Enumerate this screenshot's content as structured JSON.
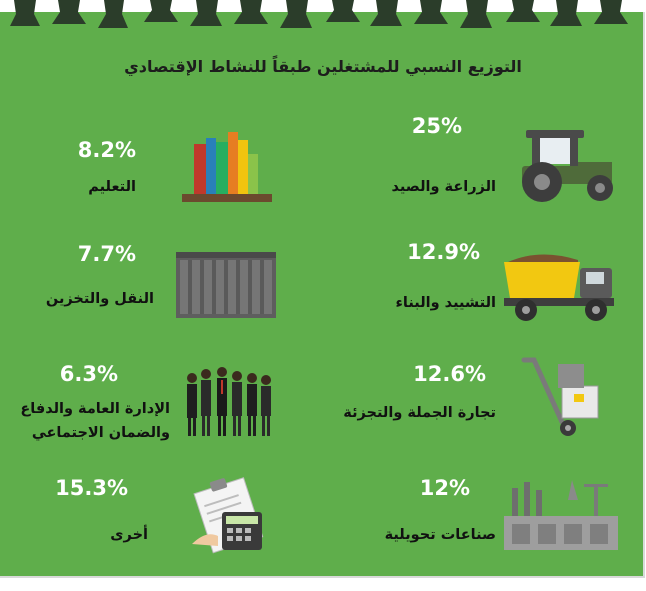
{
  "chart_data": {
    "type": "table",
    "title": "التوزيع النسبي للمشتغلين طبقاً للنشاط الإقتصادي",
    "items": [
      {
        "label": "الزراعة والصيد",
        "value_text": "25%",
        "value": 25,
        "icon": "tractor-icon"
      },
      {
        "label": "التعليم",
        "value_text": "8.2%",
        "value": 8.2,
        "icon": "books-icon"
      },
      {
        "label": "التشييد والبناء",
        "value_text": "12.9%",
        "value": 12.9,
        "icon": "dump-truck-icon"
      },
      {
        "label": "النقل والتخزين",
        "value_text": "7.7%",
        "value": 7.7,
        "icon": "shipping-container-icon"
      },
      {
        "label": "تجارة الجملة والتجزئة",
        "value_text": "12.6%",
        "value": 12.6,
        "icon": "hand-truck-icon"
      },
      {
        "label_lines": [
          "الإدارة العامة والدفاع",
          "والضمان الاجتماعي"
        ],
        "value_text": "6.3%",
        "value": 6.3,
        "icon": "people-group-icon"
      },
      {
        "label": "صناعات تحويلية",
        "value_text": "12%",
        "value": 12,
        "icon": "factory-icon"
      },
      {
        "label": "أخرى",
        "value_text": "15.3%",
        "value": 15.3,
        "icon": "calculator-clipboard-icon"
      }
    ]
  },
  "colors": {
    "background": "#5fae4b",
    "value_text": "#ffffff",
    "label_text": "#111111",
    "decoration": "#2b3d2a"
  }
}
